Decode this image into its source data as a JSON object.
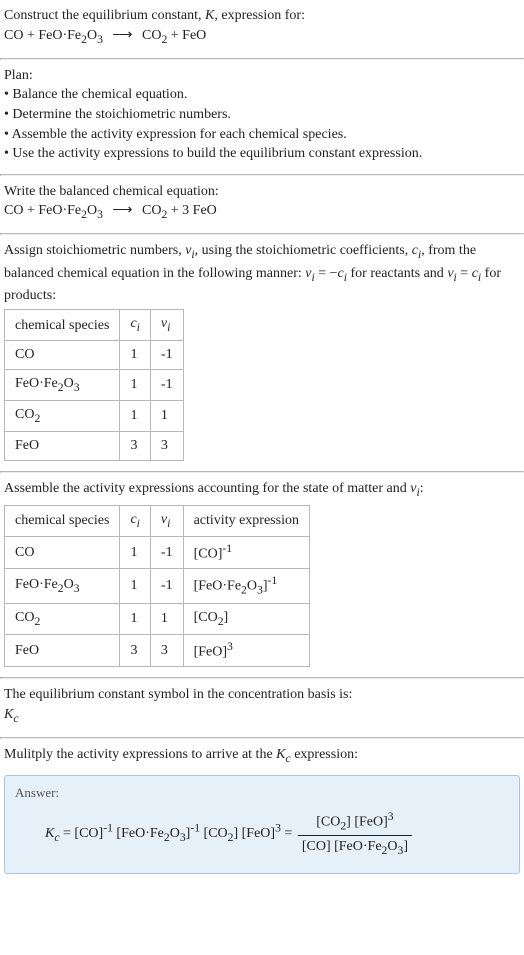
{
  "construct": {
    "title": "Construct the equilibrium constant, <i>K</i>, expression for:",
    "eq_lhs": "CO + FeO·Fe<sub>2</sub>O<sub>3</sub>",
    "arrow": "⟶",
    "eq_rhs": "CO<sub>2</sub> + FeO"
  },
  "plan": {
    "title": "Plan:",
    "items": [
      "• Balance the chemical equation.",
      "• Determine the stoichiometric numbers.",
      "• Assemble the activity expression for each chemical species.",
      "• Use the activity expressions to build the equilibrium constant expression."
    ]
  },
  "balanced": {
    "title": "Write the balanced chemical equation:",
    "eq_lhs": "CO + FeO·Fe<sub>2</sub>O<sub>3</sub>",
    "arrow": "⟶",
    "eq_rhs": "CO<sub>2</sub> + 3 FeO"
  },
  "assign": {
    "text": "Assign stoichiometric numbers, <i>ν<sub>i</sub></i>, using the stoichiometric coefficients, <i>c<sub>i</sub></i>, from the balanced chemical equation in the following manner: <i>ν<sub>i</sub></i> = −<i>c<sub>i</sub></i> for reactants and <i>ν<sub>i</sub></i> = <i>c<sub>i</sub></i> for products:",
    "table": {
      "headers": [
        "chemical species",
        "<i>c<sub>i</sub></i>",
        "<i>ν<sub>i</sub></i>"
      ],
      "rows": [
        [
          "CO",
          "1",
          "-1"
        ],
        [
          "FeO·Fe<sub>2</sub>O<sub>3</sub>",
          "1",
          "-1"
        ],
        [
          "CO<sub>2</sub>",
          "1",
          "1"
        ],
        [
          "FeO",
          "3",
          "3"
        ]
      ]
    }
  },
  "assemble": {
    "title": "Assemble the activity expressions accounting for the state of matter and <i>ν<sub>i</sub></i>:",
    "table": {
      "headers": [
        "chemical species",
        "<i>c<sub>i</sub></i>",
        "<i>ν<sub>i</sub></i>",
        "activity expression"
      ],
      "rows": [
        [
          "CO",
          "1",
          "-1",
          "[CO]<sup>-1</sup>"
        ],
        [
          "FeO·Fe<sub>2</sub>O<sub>3</sub>",
          "1",
          "-1",
          "[FeO·Fe<sub>2</sub>O<sub>3</sub>]<sup>-1</sup>"
        ],
        [
          "CO<sub>2</sub>",
          "1",
          "1",
          "[CO<sub>2</sub>]"
        ],
        [
          "FeO",
          "3",
          "3",
          "[FeO]<sup>3</sup>"
        ]
      ]
    }
  },
  "symbol": {
    "text": "The equilibrium constant symbol in the concentration basis is:",
    "kc": "<i>K<sub>c</sub></i>"
  },
  "multiply": {
    "text": "Mulitply the activity expressions to arrive at the <i>K<sub>c</sub></i> expression:"
  },
  "answer": {
    "label": "Answer:",
    "lhs": "<i>K<sub>c</sub></i> = [CO]<sup>-1</sup> [FeO·Fe<sub>2</sub>O<sub>3</sub>]<sup>-1</sup> [CO<sub>2</sub>] [FeO]<sup>3</sup> = ",
    "frac_num": "[CO<sub>2</sub>] [FeO]<sup>3</sup>",
    "frac_den": "[CO] [FeO·Fe<sub>2</sub>O<sub>3</sub>]"
  },
  "colors": {
    "text": "#222222",
    "background": "#ffffff",
    "divider": "#b8b8b8",
    "answer_bg": "#e5f0f9",
    "answer_border": "#a6c8e4"
  }
}
